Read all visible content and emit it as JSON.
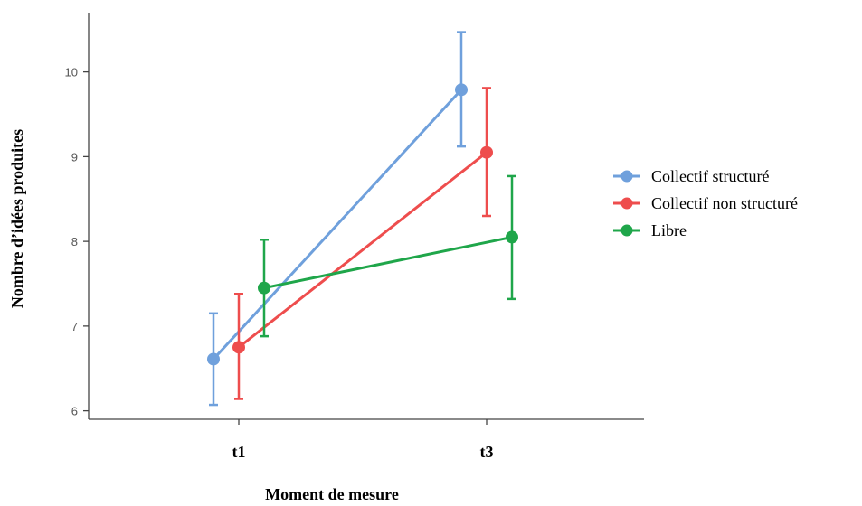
{
  "chart_data": {
    "type": "line",
    "xlabel": "Moment de mesure",
    "ylabel": "Nombre d’idées produites",
    "categories": [
      "t1",
      "t3"
    ],
    "yticks": [
      6,
      7,
      8,
      9,
      10
    ],
    "ylim": [
      5.9,
      10.7
    ],
    "error_bars": true,
    "legend_position": "right",
    "series": [
      {
        "name": "Collectif structuré",
        "color": "#6fa0dc",
        "values": [
          6.61,
          9.79
        ],
        "err_low": [
          6.07,
          9.12
        ],
        "err_high": [
          7.15,
          10.47
        ]
      },
      {
        "name": "Collectif non structuré",
        "color": "#ee4d4d",
        "values": [
          6.75,
          9.05
        ],
        "err_low": [
          6.14,
          8.3
        ],
        "err_high": [
          7.38,
          9.81
        ]
      },
      {
        "name": "Libre",
        "color": "#1fa64a",
        "values": [
          7.45,
          8.05
        ],
        "err_low": [
          6.88,
          7.32
        ],
        "err_high": [
          8.02,
          8.77
        ]
      }
    ]
  }
}
